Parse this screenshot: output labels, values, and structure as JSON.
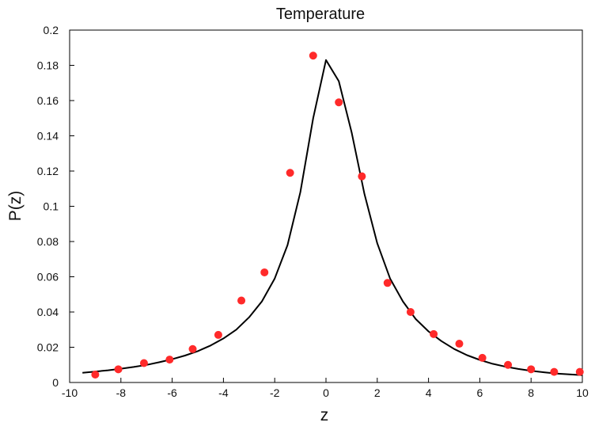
{
  "chart_data": {
    "type": "scatter",
    "title": "Temperature",
    "xlabel": "z",
    "ylabel": "P(z)",
    "xlim": [
      -10,
      10
    ],
    "ylim": [
      0,
      0.2
    ],
    "x_ticks": [
      -10,
      -8,
      -6,
      -4,
      -2,
      0,
      2,
      4,
      6,
      8,
      10
    ],
    "y_ticks": [
      0,
      0.02,
      0.04,
      0.06,
      0.08,
      0.1,
      0.12,
      0.14,
      0.16,
      0.18,
      0.2
    ],
    "x_tick_labels": [
      "-10",
      "-8",
      "-6",
      "-4",
      "-2",
      "0",
      "2",
      "4",
      "6",
      "8",
      "10"
    ],
    "y_tick_labels": [
      "0",
      "0.02",
      "0.04",
      "0.06",
      "0.08",
      "0.1",
      "0.12",
      "0.14",
      "0.16",
      "0.18",
      "0.2"
    ],
    "grid": false,
    "series": [
      {
        "kind": "line",
        "color": "#000000",
        "x": [
          -9.5,
          -9,
          -8.5,
          -8,
          -7.5,
          -7,
          -6.5,
          -6,
          -5.5,
          -5,
          -4.5,
          -4,
          -3.5,
          -3,
          -2.5,
          -2,
          -1.5,
          -1,
          -0.5,
          0,
          0.5,
          1,
          1.5,
          2,
          2.5,
          3,
          3.5,
          4,
          4.5,
          5,
          5.5,
          6,
          6.5,
          7,
          7.5,
          8,
          8.5,
          9,
          9.5,
          10
        ],
        "y": [
          0.0055,
          0.0062,
          0.0069,
          0.0078,
          0.0088,
          0.01,
          0.0115,
          0.0132,
          0.0153,
          0.0178,
          0.021,
          0.025,
          0.03,
          0.037,
          0.046,
          0.059,
          0.078,
          0.108,
          0.15,
          0.183,
          0.171,
          0.142,
          0.107,
          0.079,
          0.059,
          0.046,
          0.036,
          0.029,
          0.0235,
          0.019,
          0.0155,
          0.0128,
          0.0106,
          0.009,
          0.0077,
          0.0066,
          0.0058,
          0.0051,
          0.0046,
          0.0042
        ]
      },
      {
        "kind": "scatter",
        "color": "#ff2a2a",
        "x": [
          -9.0,
          -8.1,
          -7.1,
          -6.1,
          -5.2,
          -4.2,
          -3.3,
          -2.4,
          -1.4,
          -0.5,
          0.5,
          1.4,
          2.4,
          3.3,
          4.2,
          5.2,
          6.1,
          7.1,
          8.0,
          8.9,
          9.9
        ],
        "y": [
          0.0045,
          0.0075,
          0.011,
          0.013,
          0.019,
          0.027,
          0.0465,
          0.0625,
          0.119,
          0.1855,
          0.159,
          0.117,
          0.0565,
          0.04,
          0.0275,
          0.022,
          0.014,
          0.01,
          0.0075,
          0.006,
          0.006
        ]
      }
    ]
  }
}
